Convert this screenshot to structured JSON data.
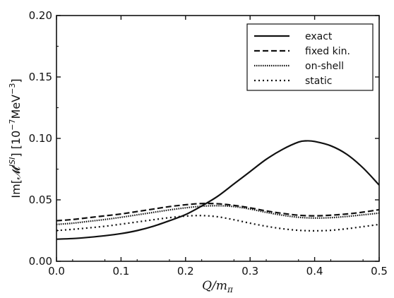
{
  "chart_data": {
    "type": "line",
    "title": "",
    "xlabel": "Q/m_π",
    "ylabel": "Im[𝓜^{ISI}] [10^{-7}MeV^{-3}]",
    "xlim": [
      0.0,
      0.5
    ],
    "ylim": [
      0.0,
      0.2
    ],
    "x_ticks": [
      "0.0",
      "0.1",
      "0.2",
      "0.3",
      "0.4",
      "0.5"
    ],
    "y_ticks": [
      "0.00",
      "0.05",
      "0.10",
      "0.15",
      "0.20"
    ],
    "grid": false,
    "legend_position": "top-right",
    "series": [
      {
        "name": "exact",
        "style": "solid",
        "x": [
          0.0,
          0.025,
          0.05,
          0.075,
          0.1,
          0.125,
          0.15,
          0.175,
          0.2,
          0.225,
          0.25,
          0.275,
          0.3,
          0.325,
          0.35,
          0.375,
          0.3875,
          0.4,
          0.425,
          0.45,
          0.475,
          0.5
        ],
        "y": [
          0.018,
          0.0185,
          0.0195,
          0.0208,
          0.0225,
          0.025,
          0.0285,
          0.033,
          0.038,
          0.045,
          0.053,
          0.063,
          0.073,
          0.083,
          0.091,
          0.097,
          0.098,
          0.0975,
          0.094,
          0.087,
          0.076,
          0.062
        ]
      },
      {
        "name": "fixed kin.",
        "style": "dashed",
        "x": [
          0.0,
          0.025,
          0.05,
          0.075,
          0.1,
          0.125,
          0.15,
          0.175,
          0.2,
          0.225,
          0.25,
          0.275,
          0.3,
          0.325,
          0.35,
          0.375,
          0.4,
          0.425,
          0.45,
          0.475,
          0.5
        ],
        "y": [
          0.033,
          0.034,
          0.0355,
          0.037,
          0.0385,
          0.0405,
          0.0425,
          0.0445,
          0.046,
          0.047,
          0.0468,
          0.0455,
          0.0435,
          0.041,
          0.039,
          0.0375,
          0.037,
          0.0375,
          0.0385,
          0.04,
          0.042
        ]
      },
      {
        "name": "on-shell",
        "style": "densely-dotted",
        "x": [
          0.0,
          0.025,
          0.05,
          0.075,
          0.1,
          0.125,
          0.15,
          0.175,
          0.2,
          0.225,
          0.25,
          0.275,
          0.3,
          0.325,
          0.35,
          0.375,
          0.4,
          0.425,
          0.45,
          0.475,
          0.5
        ],
        "y": [
          0.03,
          0.031,
          0.0325,
          0.034,
          0.0358,
          0.0378,
          0.0398,
          0.0418,
          0.0435,
          0.0448,
          0.0452,
          0.0445,
          0.0425,
          0.0398,
          0.0375,
          0.0358,
          0.0352,
          0.0355,
          0.0365,
          0.0378,
          0.0392
        ]
      },
      {
        "name": "static",
        "style": "dotted",
        "x": [
          0.0,
          0.025,
          0.05,
          0.075,
          0.1,
          0.125,
          0.15,
          0.175,
          0.2,
          0.225,
          0.25,
          0.275,
          0.3,
          0.325,
          0.35,
          0.375,
          0.4,
          0.425,
          0.45,
          0.475,
          0.5
        ],
        "y": [
          0.025,
          0.026,
          0.0272,
          0.0285,
          0.0302,
          0.032,
          0.0338,
          0.0355,
          0.0368,
          0.0372,
          0.0362,
          0.0338,
          0.031,
          0.0285,
          0.0265,
          0.0252,
          0.0248,
          0.0252,
          0.0265,
          0.0282,
          0.03
        ]
      }
    ]
  }
}
